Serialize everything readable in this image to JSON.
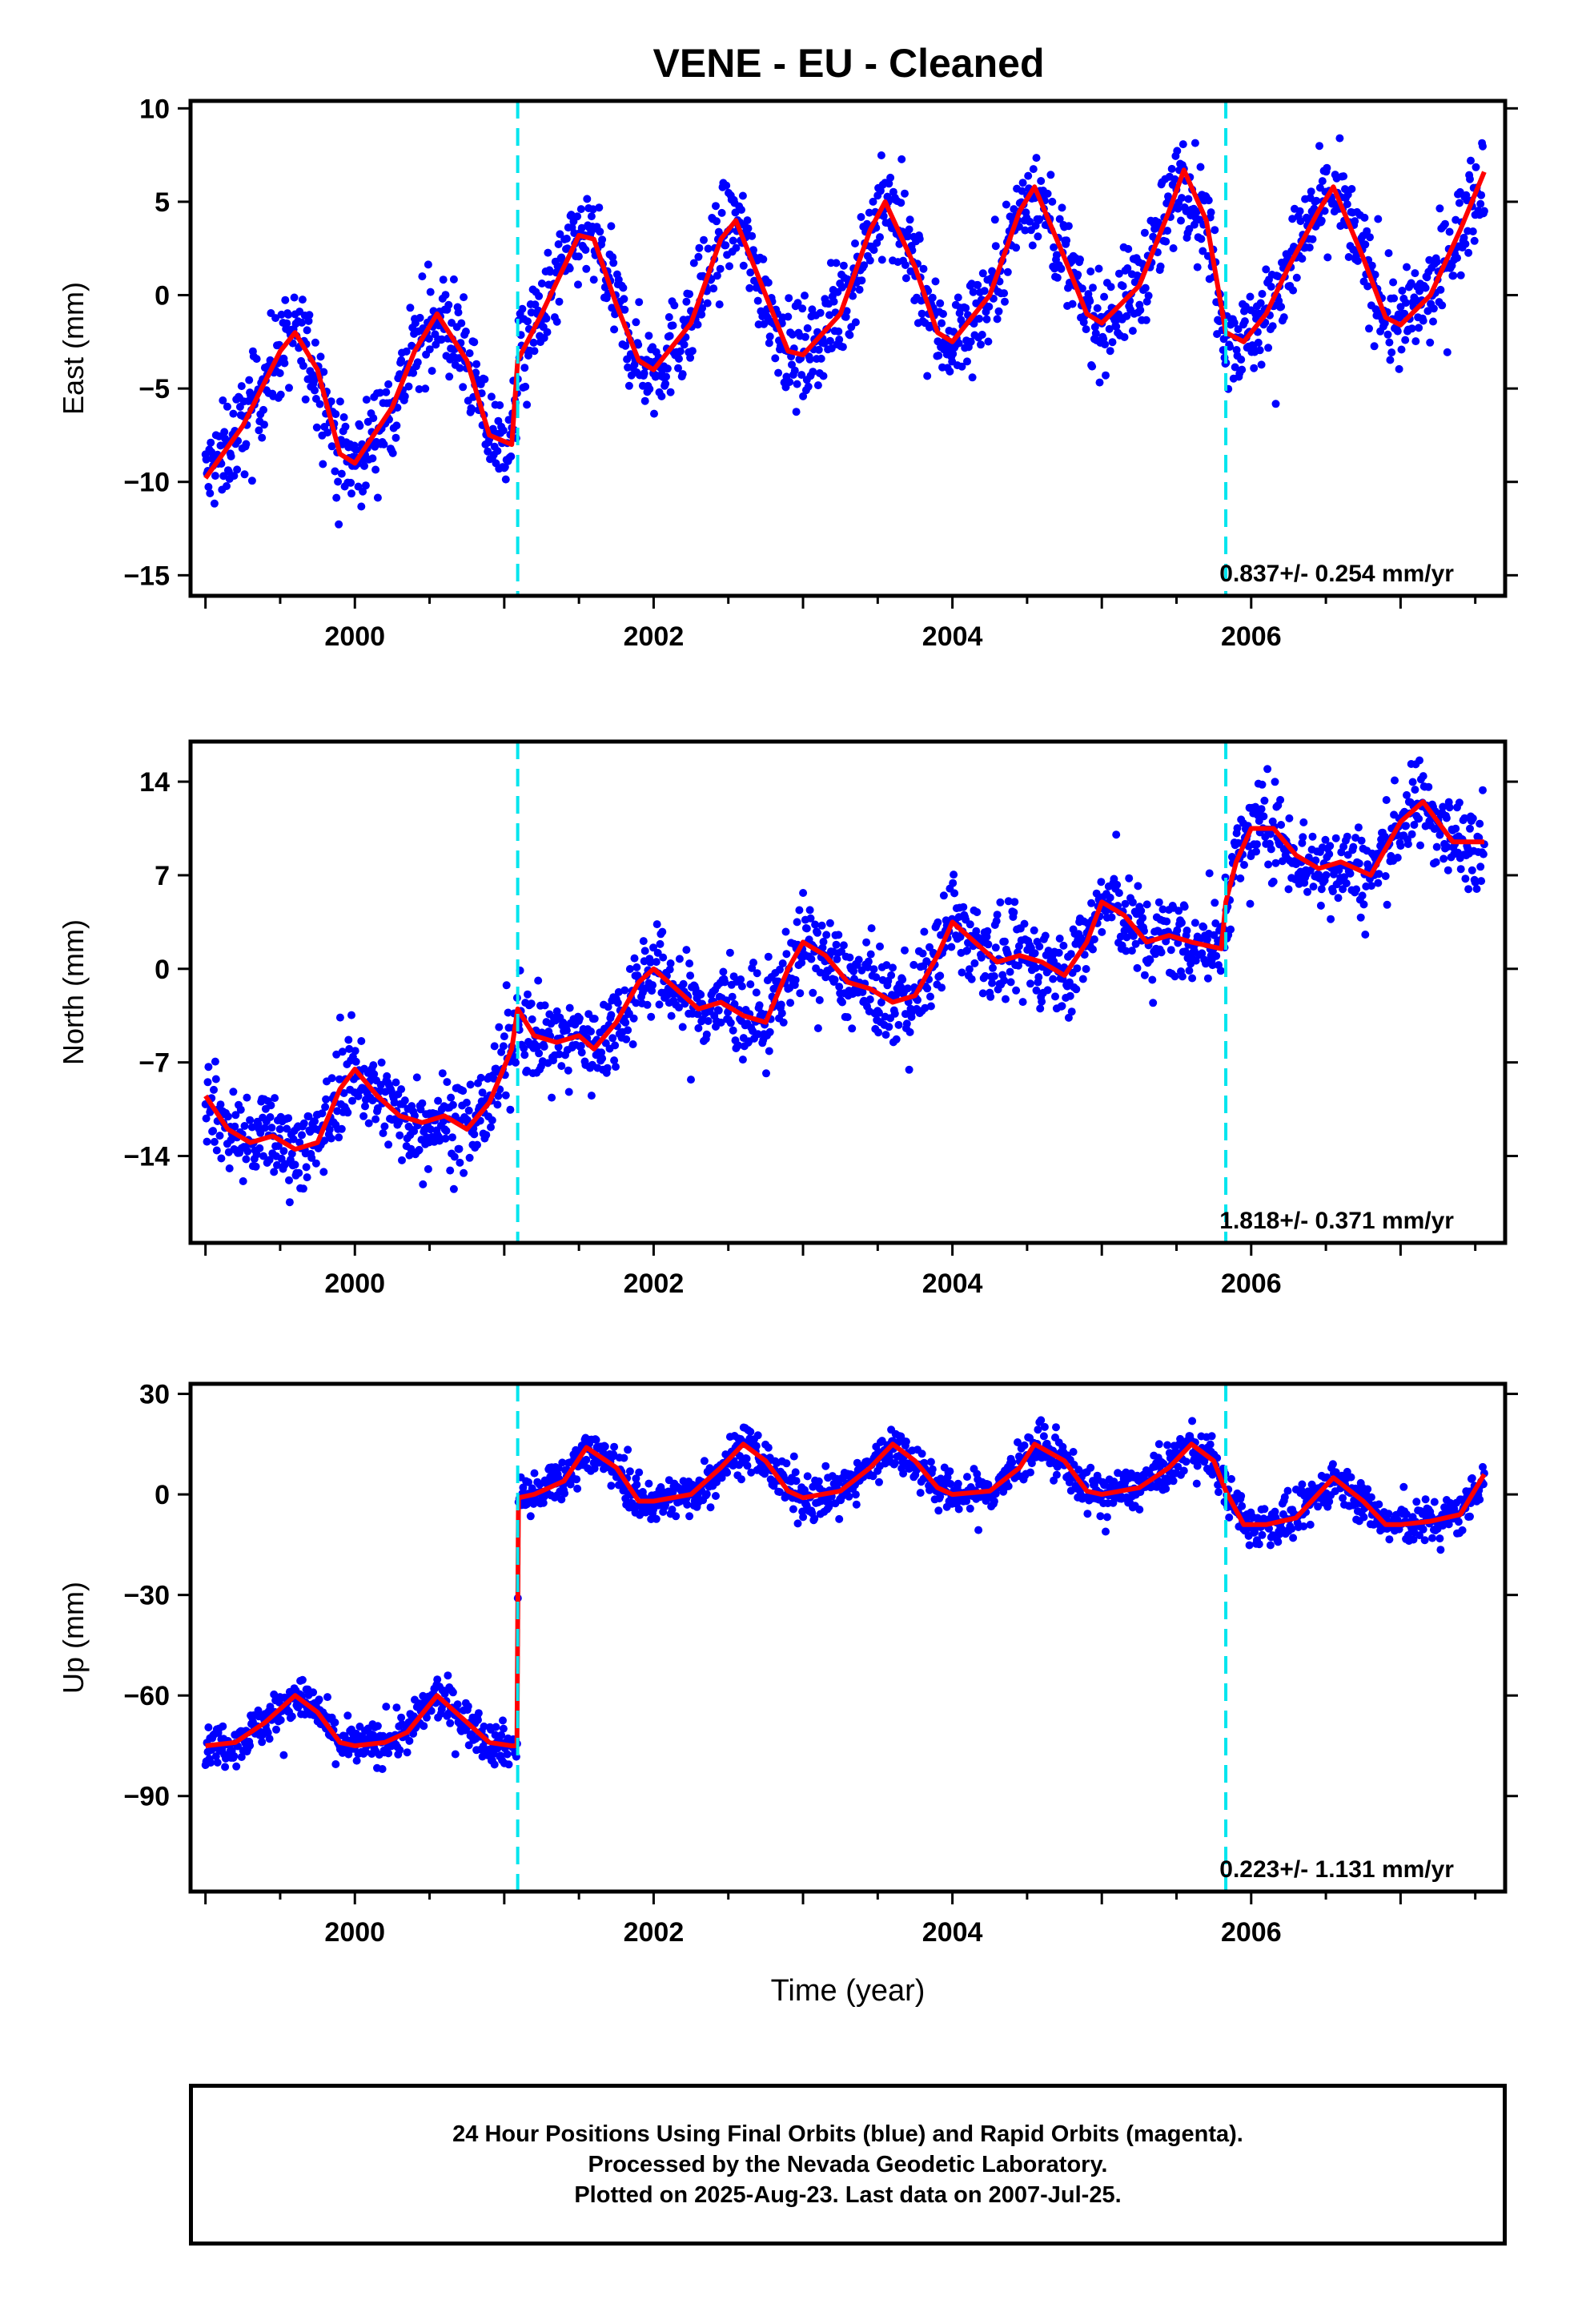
{
  "title": "VENE  - EU - Cleaned",
  "xlabel": "Time (year)",
  "footer": {
    "line1": "24 Hour Positions Using Final Orbits (blue) and Rapid Orbits (magenta).",
    "line2": "Processed by the Nevada Geodetic Laboratory.",
    "line3": "Plotted on 2025-Aug-23. Last data on 2007-Jul-25."
  },
  "colors": {
    "data": "#0000ff",
    "model": "#ff0000",
    "offset": "#00e5ee",
    "frame": "#000000"
  },
  "chart_data": [
    {
      "type": "scatter",
      "component": "east",
      "ylabel": "East (mm)",
      "rate_label": "0.837+/- 0.254 mm/yr",
      "xlim": [
        1998.9,
        2007.7
      ],
      "ylim": [
        -16.1,
        10.4
      ],
      "xticks": [
        2000,
        2002,
        2004,
        2006
      ],
      "yticks": [
        -15,
        -10,
        -5,
        0,
        5,
        10
      ],
      "offsets": [
        2001.09,
        2005.83
      ],
      "x_start": 1999.0,
      "x_end": 2007.56,
      "series": [
        {
          "role": "model",
          "x": [
            1999.0,
            1999.25,
            1999.5,
            1999.6,
            1999.75,
            1999.9,
            2000.0,
            2000.25,
            2000.4,
            2000.55,
            2000.75,
            2000.9,
            2001.05,
            2001.09,
            2001.25,
            2001.5,
            2001.6,
            2001.75,
            2001.9,
            2002.0,
            2002.25,
            2002.45,
            2002.55,
            2002.75,
            2002.9,
            2003.0,
            2003.25,
            2003.45,
            2003.55,
            2003.75,
            2003.9,
            2004.0,
            2004.25,
            2004.45,
            2004.55,
            2004.75,
            2004.9,
            2005.0,
            2005.25,
            2005.45,
            2005.55,
            2005.7,
            2005.83,
            2005.95,
            2006.1,
            2006.25,
            2006.45,
            2006.55,
            2006.75,
            2006.9,
            2007.0,
            2007.2,
            2007.4,
            2007.56
          ],
          "y": [
            -9.8,
            -7,
            -3,
            -2,
            -4,
            -8.5,
            -9,
            -6,
            -3,
            -1,
            -3.5,
            -7.5,
            -8,
            -3.5,
            -1,
            3.2,
            3,
            -0.5,
            -3.5,
            -4,
            -1.5,
            3,
            4,
            0,
            -3,
            -3.2,
            -1,
            3.5,
            5,
            1.5,
            -2,
            -2.5,
            0,
            4.5,
            5.8,
            2,
            -1,
            -1.5,
            0.5,
            4.5,
            6.7,
            4,
            -2,
            -2.5,
            -1,
            1.5,
            4.5,
            5.8,
            2,
            -1.2,
            -1.6,
            0,
            3.5,
            6.6
          ]
        }
      ],
      "scatter_spread": 1.8
    },
    {
      "type": "scatter",
      "component": "north",
      "ylabel": "North (mm)",
      "rate_label": "1.818+/- 0.371 mm/yr",
      "xlim": [
        1998.9,
        2007.7
      ],
      "ylim": [
        -20.5,
        17.0
      ],
      "xticks": [
        2000,
        2002,
        2004,
        2006
      ],
      "yticks": [
        -14,
        -7,
        0,
        7,
        14
      ],
      "offsets": [
        2001.09,
        2005.83
      ],
      "x_start": 1999.0,
      "x_end": 2007.56,
      "series": [
        {
          "role": "model",
          "x": [
            1999.0,
            1999.15,
            1999.3,
            1999.45,
            1999.6,
            1999.75,
            1999.9,
            2000.0,
            2000.15,
            2000.3,
            2000.45,
            2000.6,
            2000.75,
            2000.9,
            2001.05,
            2001.09,
            2001.2,
            2001.35,
            2001.5,
            2001.6,
            2001.75,
            2001.9,
            2002.0,
            2002.15,
            2002.3,
            2002.45,
            2002.6,
            2002.75,
            2002.9,
            2003.0,
            2003.15,
            2003.3,
            2003.45,
            2003.6,
            2003.75,
            2003.9,
            2004.0,
            2004.15,
            2004.3,
            2004.45,
            2004.6,
            2004.75,
            2004.9,
            2005.0,
            2005.15,
            2005.3,
            2005.45,
            2005.6,
            2005.8,
            2005.83,
            2005.9,
            2006.0,
            2006.15,
            2006.3,
            2006.45,
            2006.6,
            2006.8,
            2007.0,
            2007.15,
            2007.35,
            2007.56
          ],
          "y": [
            -9.5,
            -12,
            -13,
            -12.5,
            -13.5,
            -13,
            -9,
            -7.5,
            -9.5,
            -11,
            -11.5,
            -11,
            -12,
            -10,
            -6,
            -3,
            -5,
            -5.5,
            -5,
            -6,
            -4,
            -1,
            0,
            -1.5,
            -3,
            -2.5,
            -3.5,
            -4,
            0,
            2,
            1,
            -1,
            -1.5,
            -2.5,
            -2,
            1,
            3.5,
            2,
            0.5,
            1,
            0.5,
            -0.5,
            2,
            5,
            4,
            2,
            2.5,
            2,
            1.5,
            5,
            8,
            10.5,
            10.5,
            8.5,
            7.5,
            8,
            7,
            11,
            12.5,
            9.5,
            9.5
          ]
        }
      ],
      "scatter_spread": 2.3
    },
    {
      "type": "scatter",
      "component": "up",
      "ylabel": "Up (mm)",
      "rate_label": "0.223+/- 1.131 mm/yr",
      "xlim": [
        1998.9,
        2007.7
      ],
      "ylim": [
        -118.5,
        33.0
      ],
      "xticks": [
        2000,
        2002,
        2004,
        2006
      ],
      "yticks": [
        30,
        0,
        -30,
        -60,
        -90
      ],
      "offsets": [
        2001.09,
        2005.83
      ],
      "x_start": 1999.0,
      "x_end": 2007.56,
      "series": [
        {
          "role": "model",
          "x": [
            1999.0,
            1999.2,
            1999.4,
            1999.6,
            1999.75,
            1999.9,
            2000.0,
            2000.2,
            2000.35,
            2000.55,
            2000.75,
            2000.9,
            2001.05,
            2001.085,
            2001.095,
            2001.2,
            2001.4,
            2001.55,
            2001.75,
            2001.9,
            2002.0,
            2002.25,
            2002.45,
            2002.6,
            2002.75,
            2002.9,
            2003.0,
            2003.25,
            2003.45,
            2003.6,
            2003.75,
            2003.9,
            2004.0,
            2004.25,
            2004.45,
            2004.55,
            2004.75,
            2004.9,
            2005.0,
            2005.25,
            2005.45,
            2005.6,
            2005.75,
            2005.83,
            2005.95,
            2006.1,
            2006.3,
            2006.55,
            2006.75,
            2006.9,
            2007.0,
            2007.2,
            2007.4,
            2007.56
          ],
          "y": [
            -75,
            -74,
            -68,
            -60,
            -65,
            -74,
            -75,
            -74,
            -71,
            -60,
            -68,
            -74,
            -75,
            -75,
            -1,
            0,
            4,
            14,
            8,
            -2,
            -2,
            0,
            8,
            15,
            10,
            1,
            -1,
            1,
            8,
            15,
            10,
            2,
            0,
            1,
            8,
            15,
            10,
            1,
            0,
            2,
            8,
            15,
            10,
            1,
            -9,
            -9,
            -7,
            5,
            -2,
            -9,
            -9,
            -8,
            -6,
            6
          ]
        }
      ],
      "scatter_spread": 4.5
    }
  ]
}
